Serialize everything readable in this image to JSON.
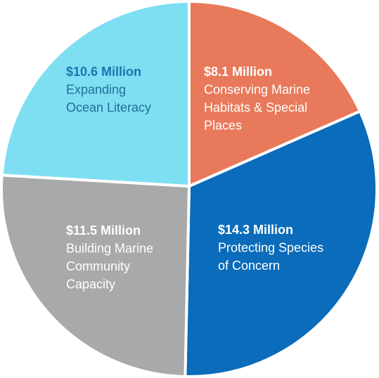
{
  "chart_data": {
    "type": "pie",
    "title": "",
    "slices": [
      {
        "amount": "$8.1 Million",
        "label_lines": [
          "Conserving Marine",
          "Habitats & Special",
          "Places"
        ],
        "value": 8.1,
        "color": "#e8795a",
        "text_color": "#ffffff",
        "amount_color": "#ffffff"
      },
      {
        "amount": "$14.3 Million",
        "label_lines": [
          "Protecting Species",
          "of Concern"
        ],
        "value": 14.3,
        "color": "#0a6cba",
        "text_color": "#ffffff",
        "amount_color": "#ffffff"
      },
      {
        "amount": "$11.5 Million",
        "label_lines": [
          "Building Marine",
          "Community",
          "Capacity"
        ],
        "value": 11.5,
        "color": "#a8a9ab",
        "text_color": "#ffffff",
        "amount_color": "#ffffff"
      },
      {
        "amount": "$10.6 Million",
        "label_lines": [
          "Expanding",
          "Ocean Literacy"
        ],
        "value": 10.6,
        "color": "#7fdff2",
        "text_color": "#1e6f9a",
        "amount_color": "#1b73b0"
      }
    ],
    "border_color": "#ffffff"
  }
}
